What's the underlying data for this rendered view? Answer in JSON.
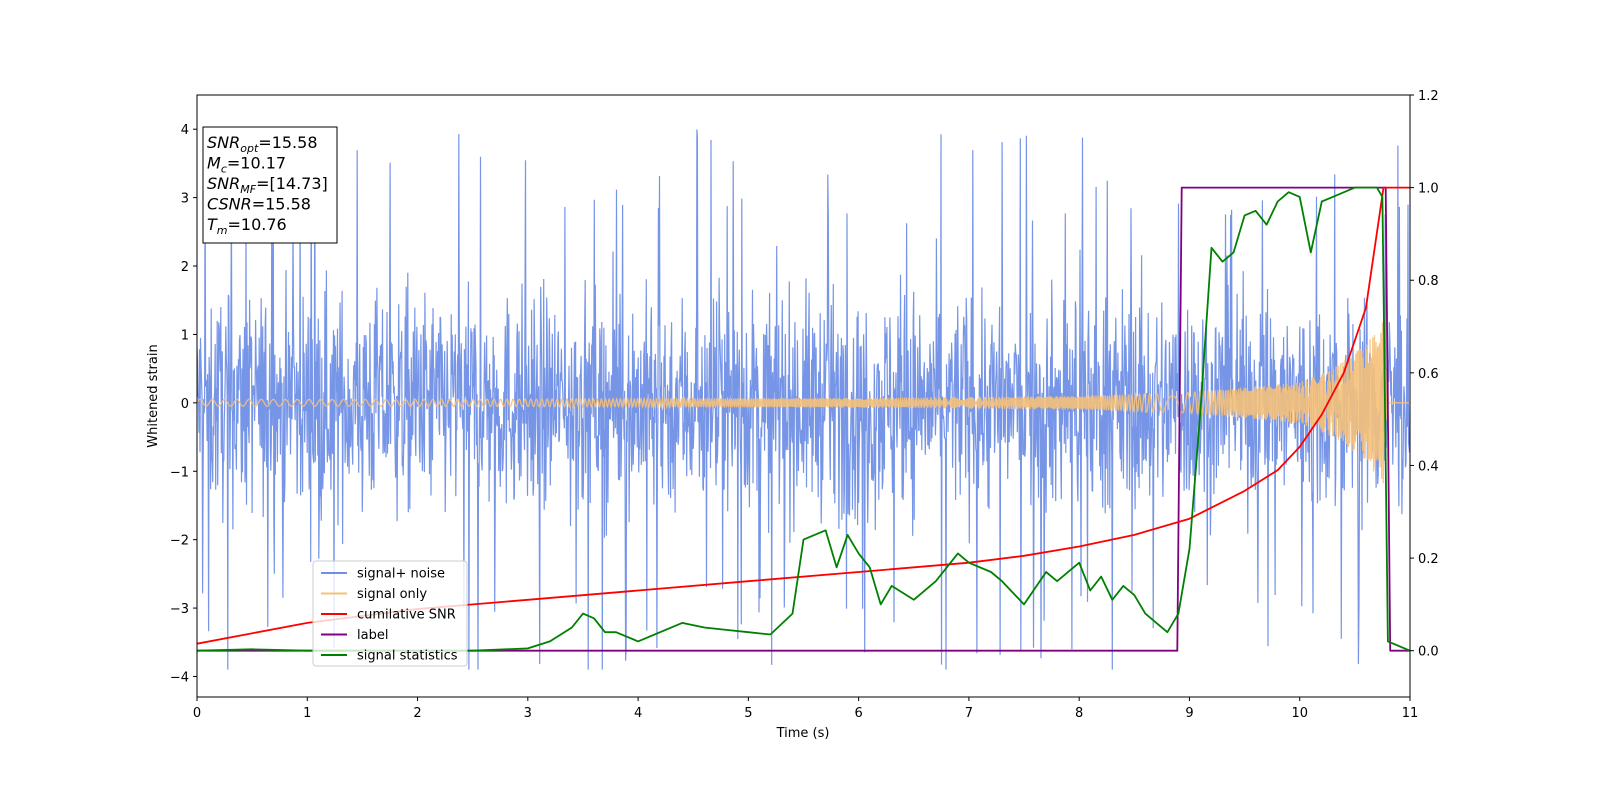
{
  "chart_data": {
    "type": "line",
    "xlabel": "Time (s)",
    "ylabel": "Whitened strain",
    "xlim": [
      0,
      11
    ],
    "ylim_left": [
      -4.3,
      4.5
    ],
    "ylim_right": [
      -0.1,
      1.2
    ],
    "x_ticks": [
      "0",
      "1",
      "2",
      "3",
      "4",
      "5",
      "6",
      "7",
      "8",
      "9",
      "10",
      "11"
    ],
    "y_ticks_left": [
      "−4",
      "−3",
      "−2",
      "−1",
      "0",
      "1",
      "2",
      "3",
      "4"
    ],
    "y_ticks_right": [
      "0.0",
      "0.2",
      "0.4",
      "0.6",
      "0.8",
      "1.0",
      "1.2"
    ],
    "grid": false,
    "legend_position": "lower-left",
    "annotation_box": {
      "lines": [
        {
          "base": "SNR",
          "sub": "opt",
          "rest": "=15.58"
        },
        {
          "base": "M",
          "sub": "c",
          "rest": "=10.17"
        },
        {
          "base": "SNR",
          "sub": "MF",
          "rest": "=[14.73]"
        },
        {
          "base": "CSNR",
          "sub": "",
          "rest": "=15.58"
        },
        {
          "base": "T",
          "sub": "m",
          "rest": "=10.76"
        }
      ]
    },
    "series": [
      {
        "name": "signal+ noise",
        "axis": "left",
        "color": "#6f8fe6",
        "description": "noise band roughly within ±2.2 with spikes up to ±4"
      },
      {
        "name": "signal only",
        "axis": "left",
        "color": "#f5c07a",
        "envelope": {
          "x": [
            0,
            2,
            4,
            6,
            8,
            9,
            10,
            10.3,
            10.6,
            10.76,
            10.8,
            11
          ],
          "amp": [
            0.05,
            0.05,
            0.06,
            0.07,
            0.1,
            0.15,
            0.3,
            0.5,
            0.85,
            1.2,
            0,
            0
          ]
        }
      },
      {
        "name": "cumilative SNR",
        "axis": "right",
        "color": "#ff0000",
        "x": [
          0,
          1,
          2,
          3,
          4,
          5,
          6,
          7,
          7.5,
          8,
          8.5,
          9,
          9.5,
          9.8,
          10,
          10.2,
          10.4,
          10.6,
          10.76,
          11
        ],
        "y": [
          0.015,
          0.06,
          0.09,
          0.11,
          0.13,
          0.15,
          0.17,
          0.19,
          0.205,
          0.225,
          0.25,
          0.285,
          0.345,
          0.39,
          0.44,
          0.51,
          0.6,
          0.74,
          1.0,
          1.0
        ]
      },
      {
        "name": "label",
        "axis": "right",
        "color": "#800080",
        "x": [
          0,
          8.89,
          8.93,
          10.78,
          10.82,
          11
        ],
        "y": [
          0,
          0,
          1.0,
          1.0,
          0,
          0
        ]
      },
      {
        "name": "signal statistics",
        "axis": "right",
        "color": "#008000",
        "x": [
          0,
          0.5,
          1,
          2,
          2.5,
          3,
          3.2,
          3.4,
          3.5,
          3.6,
          3.7,
          3.8,
          4,
          4.2,
          4.4,
          4.6,
          4.8,
          5,
          5.2,
          5.4,
          5.5,
          5.7,
          5.8,
          5.9,
          6.0,
          6.1,
          6.2,
          6.3,
          6.5,
          6.7,
          6.9,
          7.0,
          7.2,
          7.3,
          7.5,
          7.7,
          7.8,
          8.0,
          8.1,
          8.2,
          8.3,
          8.4,
          8.5,
          8.6,
          8.7,
          8.8,
          8.9,
          9.0,
          9.1,
          9.2,
          9.3,
          9.4,
          9.5,
          9.6,
          9.7,
          9.8,
          9.9,
          10.0,
          10.1,
          10.2,
          10.3,
          10.5,
          10.7,
          10.75,
          10.8,
          11
        ],
        "y": [
          0,
          0.003,
          0,
          0,
          0,
          0.005,
          0.02,
          0.05,
          0.08,
          0.07,
          0.04,
          0.04,
          0.02,
          0.04,
          0.06,
          0.05,
          0.045,
          0.04,
          0.035,
          0.08,
          0.24,
          0.26,
          0.18,
          0.25,
          0.21,
          0.18,
          0.1,
          0.14,
          0.11,
          0.15,
          0.21,
          0.19,
          0.17,
          0.15,
          0.1,
          0.17,
          0.15,
          0.19,
          0.13,
          0.16,
          0.11,
          0.14,
          0.12,
          0.08,
          0.06,
          0.04,
          0.08,
          0.22,
          0.52,
          0.87,
          0.84,
          0.86,
          0.94,
          0.95,
          0.92,
          0.97,
          0.99,
          0.98,
          0.86,
          0.97,
          0.98,
          1.0,
          1.0,
          0.98,
          0.02,
          0
        ]
      }
    ]
  }
}
